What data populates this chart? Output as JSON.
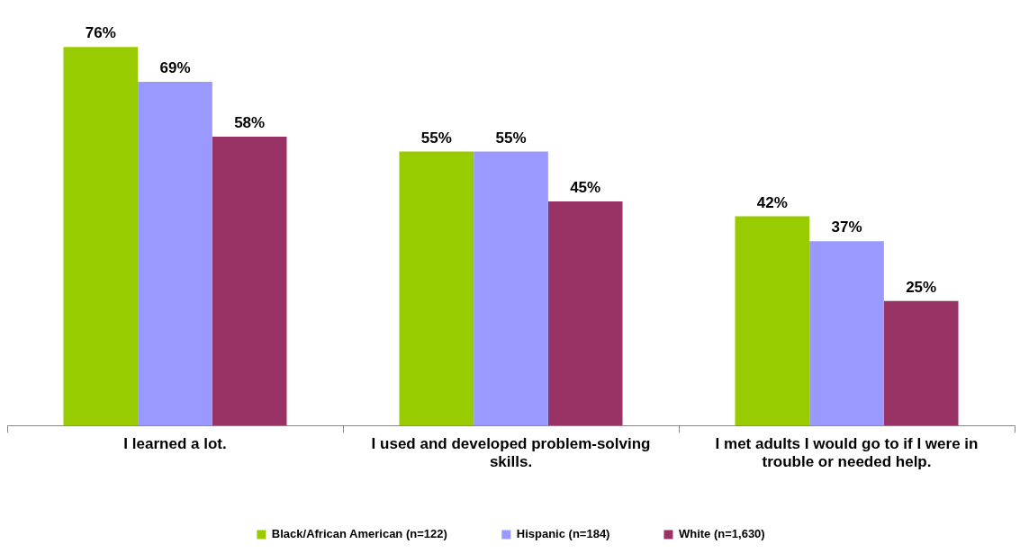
{
  "chart_data": {
    "type": "bar",
    "categories": [
      "I learned a lot.",
      "I used and developed problem-solving skills.",
      "I met adults I would go to if I were in trouble or needed help."
    ],
    "series": [
      {
        "name": "Black/African American (n=122)",
        "color": "#99cc00",
        "values": [
          76,
          55,
          42
        ],
        "value_labels": [
          "76%",
          "55%",
          "42%"
        ]
      },
      {
        "name": "Hispanic (n=184)",
        "color": "#9999ff",
        "values": [
          69,
          55,
          37
        ],
        "value_labels": [
          "69%",
          "55%",
          "37%"
        ]
      },
      {
        "name": "White (n=1,630)",
        "color": "#993366",
        "values": [
          58,
          45,
          25
        ],
        "value_labels": [
          "58%",
          "45%",
          "25%"
        ]
      }
    ],
    "legend": "bottom",
    "grid": false
  }
}
